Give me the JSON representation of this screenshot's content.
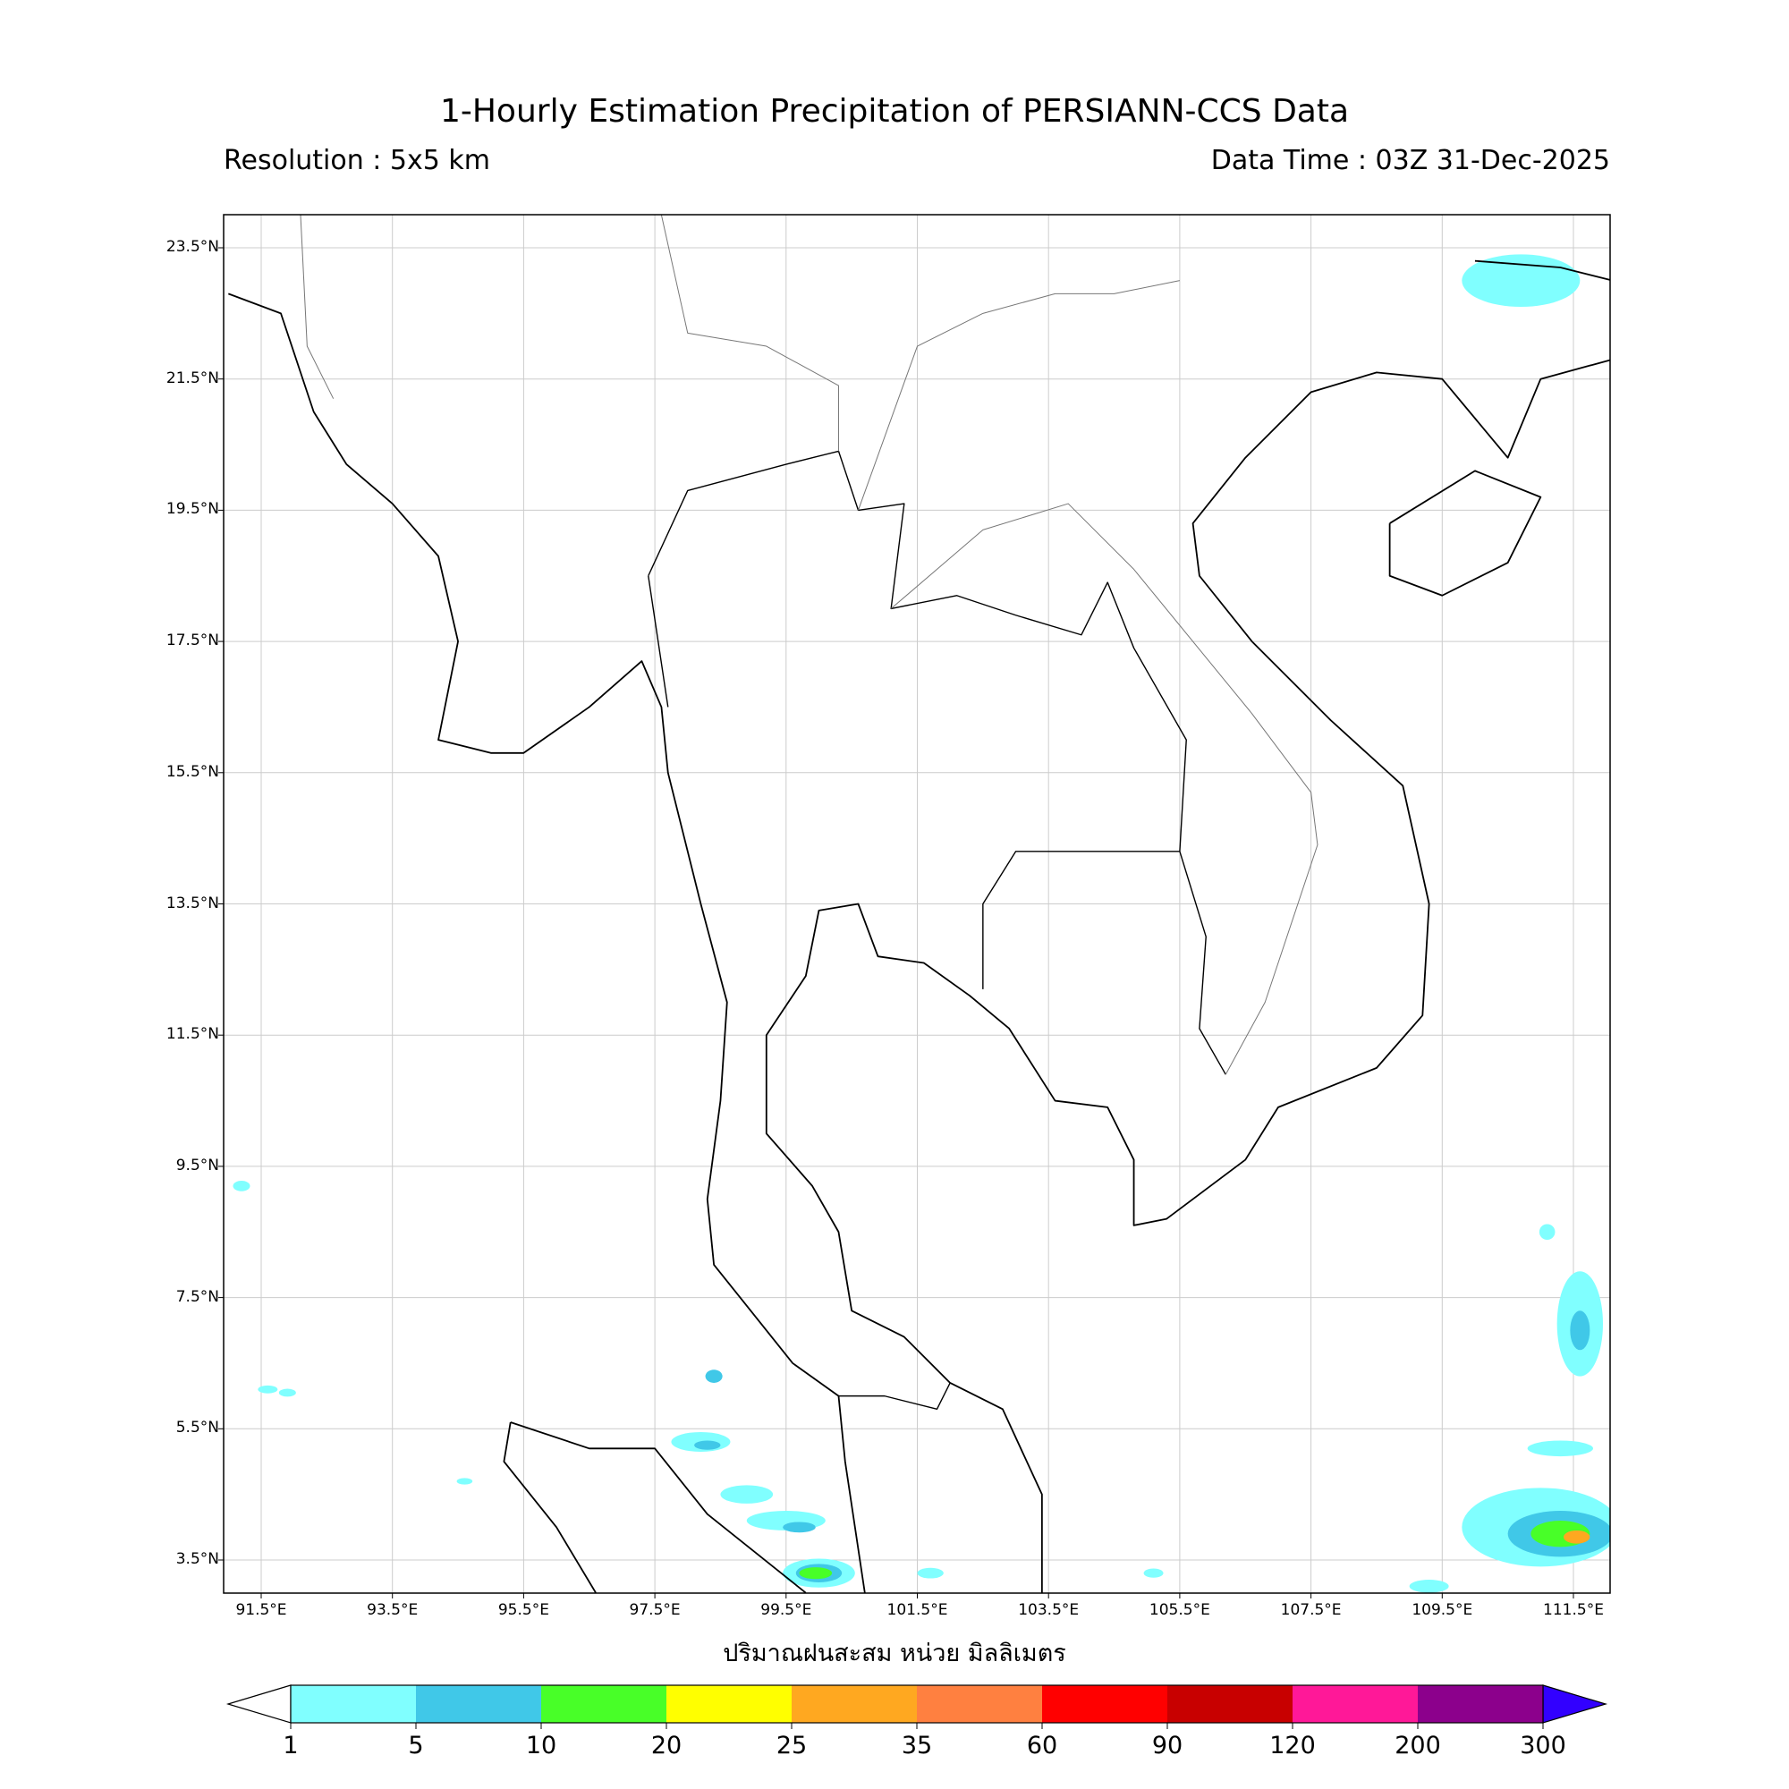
{
  "title": "1-Hourly Estimation Precipitation of PERSIANN-CCS Data",
  "resolution": "Resolution : 5x5 km",
  "data_time": "Data Time : 03Z 31-Dec-2025",
  "map": {
    "extent_lon": [
      90.93,
      112.06
    ],
    "extent_lat": [
      2.99,
      24.0
    ],
    "grid": true,
    "lat_ticks": [
      "23.5°N",
      "21.5°N",
      "19.5°N",
      "17.5°N",
      "15.5°N",
      "13.5°N",
      "11.5°N",
      "9.5°N",
      "7.5°N",
      "5.5°N",
      "3.5°N"
    ],
    "lat_values": [
      23.5,
      21.5,
      19.5,
      17.5,
      15.5,
      13.5,
      11.5,
      9.5,
      7.5,
      5.5,
      3.5
    ],
    "lon_ticks": [
      "91.5°E",
      "93.5°E",
      "95.5°E",
      "97.5°E",
      "99.5°E",
      "101.5°E",
      "103.5°E",
      "105.5°E",
      "107.5°E",
      "109.5°E",
      "111.5°E"
    ],
    "lon_values": [
      91.5,
      93.5,
      95.5,
      97.5,
      99.5,
      101.5,
      103.5,
      105.5,
      107.5,
      109.5,
      111.5
    ],
    "xlabel": "ปริมาณฝนสะสม หน่วย มิลลิเมตร",
    "rain_cells": [
      {
        "lon": 110.7,
        "lat": 23.0,
        "rx": 0.9,
        "ry": 0.4,
        "level": 0
      },
      {
        "lon": 111.0,
        "lat": 4.0,
        "rx": 1.2,
        "ry": 0.6,
        "level": 0
      },
      {
        "lon": 111.3,
        "lat": 3.9,
        "rx": 0.8,
        "ry": 0.35,
        "level": 1
      },
      {
        "lon": 111.3,
        "lat": 3.9,
        "rx": 0.45,
        "ry": 0.2,
        "level": 2
      },
      {
        "lon": 111.55,
        "lat": 3.85,
        "rx": 0.2,
        "ry": 0.1,
        "level": 4
      },
      {
        "lon": 111.6,
        "lat": 7.1,
        "rx": 0.35,
        "ry": 0.8,
        "level": 0
      },
      {
        "lon": 111.6,
        "lat": 7.0,
        "rx": 0.15,
        "ry": 0.3,
        "level": 1
      },
      {
        "lon": 111.3,
        "lat": 5.2,
        "rx": 0.5,
        "ry": 0.12,
        "level": 0
      },
      {
        "lon": 111.1,
        "lat": 8.5,
        "rx": 0.12,
        "ry": 0.12,
        "level": 0
      },
      {
        "lon": 98.2,
        "lat": 5.3,
        "rx": 0.45,
        "ry": 0.15,
        "level": 0
      },
      {
        "lon": 98.3,
        "lat": 5.25,
        "rx": 0.2,
        "ry": 0.07,
        "level": 1
      },
      {
        "lon": 98.9,
        "lat": 4.5,
        "rx": 0.4,
        "ry": 0.14,
        "level": 0
      },
      {
        "lon": 99.5,
        "lat": 4.1,
        "rx": 0.6,
        "ry": 0.15,
        "level": 0
      },
      {
        "lon": 99.7,
        "lat": 4.0,
        "rx": 0.25,
        "ry": 0.08,
        "level": 1
      },
      {
        "lon": 100.0,
        "lat": 3.3,
        "rx": 0.55,
        "ry": 0.22,
        "level": 0
      },
      {
        "lon": 100.0,
        "lat": 3.3,
        "rx": 0.35,
        "ry": 0.14,
        "level": 1
      },
      {
        "lon": 99.95,
        "lat": 3.3,
        "rx": 0.25,
        "ry": 0.09,
        "level": 2
      },
      {
        "lon": 91.2,
        "lat": 9.2,
        "rx": 0.13,
        "ry": 0.08,
        "level": 0
      },
      {
        "lon": 91.6,
        "lat": 6.1,
        "rx": 0.15,
        "ry": 0.06,
        "level": 0
      },
      {
        "lon": 91.9,
        "lat": 6.05,
        "rx": 0.13,
        "ry": 0.06,
        "level": 0
      },
      {
        "lon": 98.4,
        "lat": 6.3,
        "rx": 0.13,
        "ry": 0.1,
        "level": 1
      },
      {
        "lon": 109.3,
        "lat": 3.1,
        "rx": 0.3,
        "ry": 0.1,
        "level": 0
      },
      {
        "lon": 101.7,
        "lat": 3.3,
        "rx": 0.2,
        "ry": 0.08,
        "level": 0
      },
      {
        "lon": 105.1,
        "lat": 3.3,
        "rx": 0.15,
        "ry": 0.07,
        "level": 0
      },
      {
        "lon": 94.6,
        "lat": 4.7,
        "rx": 0.12,
        "ry": 0.05,
        "level": 0
      }
    ]
  },
  "colorbar": {
    "labels": [
      "1",
      "5",
      "10",
      "20",
      "25",
      "35",
      "60",
      "90",
      "120",
      "200",
      "300"
    ],
    "colors": [
      "#80ffff",
      "#40c8e8",
      "#48ff28",
      "#ffff00",
      "#ffa820",
      "#ff8040",
      "#ff0000",
      "#c80000",
      "#ff1898",
      "#8c008c"
    ],
    "under_color": "#ffffff",
    "over_color": "#3200ff"
  }
}
